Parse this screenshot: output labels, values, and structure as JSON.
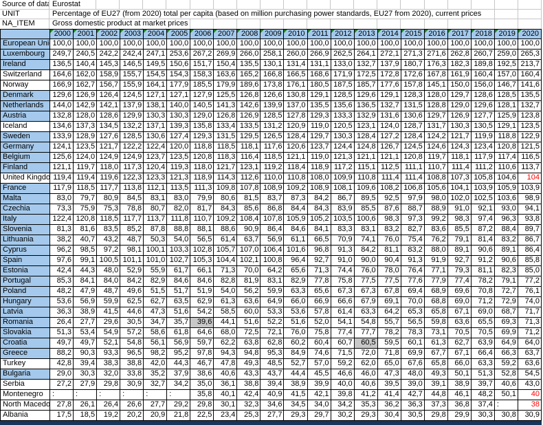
{
  "colors": {
    "header_blue": "#A4C9EC",
    "grid_gray": "#C6C6C6",
    "highlight_gray": "#C8C8C8",
    "red_text": "#FF0000",
    "note_marker_green": "#1E7E1E",
    "bottom_bar_navy": "#16365C"
  },
  "meta": [
    {
      "label": "Source of data",
      "value": "Eurostat"
    },
    {
      "label": "UNIT",
      "value": "Percentage of EU27 (from 2020) total per capita (based on million purchasing power standards, EU27 from 2020), current prices"
    },
    {
      "label": "NA_ITEM",
      "value": "Gross domestic product at market prices"
    }
  ],
  "years": [
    "2000",
    "2001",
    "2002",
    "2003",
    "2004",
    "2005",
    "2006",
    "2007",
    "2008",
    "2009",
    "2010",
    "2011",
    "2012",
    "2013",
    "2014",
    "2015",
    "2016",
    "2017",
    "2018",
    "2019",
    "2020"
  ],
  "rows": [
    {
      "country": "European Union",
      "eu_member": true,
      "values": [
        "100,0",
        "100,0",
        "100,0",
        "100,0",
        "100,0",
        "100,0",
        "100,0",
        "100,0",
        "100,0",
        "100,0",
        "100,0",
        "100,0",
        "100,0",
        "100,0",
        "100,0",
        "100,0",
        "100,0",
        "100,0",
        "100,0",
        "100,0",
        "100,0"
      ]
    },
    {
      "country": "Luxembourg",
      "eu_member": true,
      "values": [
        "249,7",
        "240,5",
        "242,2",
        "242,4",
        "247,1",
        "253,6",
        "267,2",
        "269,9",
        "266,0",
        "258,1",
        "260,0",
        "266,9",
        "262,5",
        "264,1",
        "272,1",
        "271,3",
        "271,6",
        "262,8",
        "260,7",
        "259,0",
        "265,3"
      ]
    },
    {
      "country": "Ireland",
      "eu_member": true,
      "values": [
        "136,5",
        "140,4",
        "145,3",
        "146,5",
        "149,5",
        "150,6",
        "151,7",
        "150,4",
        "135,5",
        "130,1",
        "131,4",
        "131,1",
        "133,0",
        "132,7",
        "137,9",
        "180,7",
        "176,3",
        "182,3",
        "189,8",
        "192,5",
        "213,7"
      ]
    },
    {
      "country": "Switzerland",
      "eu_member": false,
      "values": [
        "164,6",
        "162,0",
        "158,9",
        "155,7",
        "154,5",
        "154,3",
        "158,3",
        "163,6",
        "165,2",
        "166,8",
        "166,5",
        "168,6",
        "171,9",
        "172,5",
        "172,8",
        "172,6",
        "167,8",
        "161,9",
        "160,4",
        "157,0",
        "160,4"
      ]
    },
    {
      "country": "Norway",
      "eu_member": false,
      "values": [
        "166,9",
        "162,7",
        "156,7",
        "155,9",
        "164,1",
        "177,9",
        "185,5",
        "179,9",
        "189,6",
        "173,8",
        "176,1",
        "180,5",
        "187,5",
        "185,7",
        "177,6",
        "157,8",
        "145,1",
        "150,0",
        "156,0",
        "146,7",
        "141,6"
      ]
    },
    {
      "country": "Denmark",
      "eu_member": true,
      "values": [
        "129,6",
        "126,9",
        "126,4",
        "124,5",
        "127,1",
        "127,1",
        "127,9",
        "125,5",
        "126,8",
        "126,6",
        "130,8",
        "129,1",
        "128,5",
        "129,6",
        "129,1",
        "128,3",
        "128,0",
        "129,7",
        "128,6",
        "128,5",
        "135,5"
      ]
    },
    {
      "country": "Netherlands",
      "eu_member": true,
      "values": [
        "144,0",
        "142,9",
        "142,1",
        "137,9",
        "138,1",
        "140,0",
        "140,5",
        "141,3",
        "142,6",
        "139,9",
        "137,0",
        "135,5",
        "135,6",
        "136,5",
        "132,7",
        "131,5",
        "128,8",
        "129,0",
        "129,6",
        "128,1",
        "132,7"
      ]
    },
    {
      "country": "Austria",
      "eu_member": true,
      "values": [
        "132,8",
        "128,0",
        "128,6",
        "129,9",
        "130,3",
        "130,3",
        "129,0",
        "126,8",
        "126,9",
        "128,5",
        "127,8",
        "129,3",
        "133,3",
        "132,9",
        "131,6",
        "130,6",
        "129,7",
        "126,9",
        "127,7",
        "125,9",
        "123,8"
      ]
    },
    {
      "country": "Iceland",
      "eu_member": false,
      "values": [
        "134,6",
        "137,3",
        "134,5",
        "132,2",
        "137,1",
        "139,3",
        "135,8",
        "133,4",
        "133,5",
        "131,2",
        "120,9",
        "119,0",
        "120,5",
        "123,1",
        "124,0",
        "128,7",
        "131,7",
        "130,3",
        "130,5",
        "129,1",
        "123,5"
      ]
    },
    {
      "country": "Sweden",
      "eu_member": true,
      "values": [
        "133,9",
        "128,9",
        "127,6",
        "128,5",
        "130,6",
        "127,4",
        "129,3",
        "131,5",
        "129,5",
        "126,5",
        "128,4",
        "129,7",
        "130,3",
        "128,4",
        "127,2",
        "128,4",
        "124,2",
        "121,7",
        "119,9",
        "118,8",
        "122,9"
      ]
    },
    {
      "country": "Germany",
      "eu_member": true,
      "values": [
        "124,1",
        "123,5",
        "121,7",
        "122,2",
        "122,4",
        "120,0",
        "118,8",
        "118,5",
        "118,1",
        "117,6",
        "120,6",
        "123,7",
        "124,4",
        "124,8",
        "126,7",
        "124,5",
        "124,6",
        "124,3",
        "123,4",
        "120,8",
        "121,5"
      ]
    },
    {
      "country": "Belgium",
      "eu_member": true,
      "values": [
        "125,6",
        "124,0",
        "124,9",
        "124,9",
        "123,7",
        "123,5",
        "120,8",
        "118,3",
        "116,4",
        "118,5",
        "121,1",
        "119,0",
        "121,3",
        "121,1",
        "121,1",
        "120,8",
        "119,7",
        "118,1",
        "117,9",
        "117,4",
        "116,5"
      ]
    },
    {
      "country": "Finland",
      "eu_member": true,
      "values": [
        "121,1",
        "119,7",
        "118,0",
        "117,3",
        "120,4",
        "119,3",
        "118,0",
        "121,7",
        "123,1",
        "119,2",
        "118,4",
        "118,9",
        "117,2",
        "115,1",
        "112,5",
        "111,1",
        "110,7",
        "111,4",
        "111,2",
        "110,6",
        "113,7"
      ]
    },
    {
      "country": "United Kingdom",
      "eu_member": false,
      "values": [
        "119,4",
        "119,4",
        "119,6",
        "122,3",
        "123,3",
        "121,3",
        "118,9",
        "114,3",
        "112,6",
        "110,0",
        "110,8",
        "108,0",
        "109,9",
        "110,8",
        "111,4",
        "111,4",
        "108,8",
        "107,3",
        "105,8",
        "104,6",
        "104"
      ],
      "cell_styles": {
        "20": "red"
      }
    },
    {
      "country": "France",
      "eu_member": true,
      "values": [
        "117,9",
        "118,5",
        "117,7",
        "113,8",
        "112,1",
        "113,5",
        "111,3",
        "109,8",
        "107,8",
        "108,9",
        "109,2",
        "108,9",
        "108,1",
        "109,6",
        "108,2",
        "106,8",
        "105,6",
        "104,1",
        "103,9",
        "105,9",
        "103,9"
      ]
    },
    {
      "country": "Malta",
      "eu_member": true,
      "values": [
        "83,0",
        "79,7",
        "80,9",
        "84,5",
        "83,1",
        "83,0",
        "79,9",
        "80,6",
        "81,5",
        "83,7",
        "87,3",
        "84,2",
        "86,7",
        "89,5",
        "92,5",
        "97,9",
        "98,0",
        "102,0",
        "102,5",
        "103,6",
        "98,9"
      ]
    },
    {
      "country": "Czechia",
      "eu_member": true,
      "values": [
        "73,3",
        "75,9",
        "75,3",
        "78,8",
        "80,7",
        "82,0",
        "81,7",
        "84,3",
        "85,6",
        "86,8",
        "84,4",
        "84,3",
        "83,9",
        "85,5",
        "87,6",
        "88,7",
        "88,9",
        "91,0",
        "92,1",
        "93,0",
        "94,1"
      ]
    },
    {
      "country": "Italy",
      "eu_member": true,
      "values": [
        "122,4",
        "120,8",
        "118,5",
        "117,7",
        "113,7",
        "111,8",
        "110,7",
        "109,2",
        "108,4",
        "107,8",
        "105,9",
        "105,2",
        "103,5",
        "100,6",
        "98,3",
        "97,3",
        "99,2",
        "98,3",
        "97,4",
        "96,3",
        "93,8"
      ]
    },
    {
      "country": "Slovenia",
      "eu_member": true,
      "values": [
        "81,3",
        "81,6",
        "83,5",
        "85,2",
        "87,8",
        "88,8",
        "88,1",
        "88,6",
        "90,9",
        "86,4",
        "84,6",
        "84,1",
        "83,3",
        "83,1",
        "83,2",
        "82,7",
        "83,6",
        "85,5",
        "87,2",
        "88,4",
        "89,7"
      ]
    },
    {
      "country": "Lithuania",
      "eu_member": true,
      "values": [
        "38,2",
        "40,7",
        "43,2",
        "48,7",
        "50,3",
        "54,0",
        "56,5",
        "61,4",
        "63,7",
        "56,9",
        "61,1",
        "66,5",
        "70,9",
        "74,1",
        "76,0",
        "75,4",
        "76,2",
        "79,1",
        "81,4",
        "83,2",
        "86,7"
      ]
    },
    {
      "country": "Cyprus",
      "eu_member": true,
      "values": [
        "96,2",
        "98,5",
        "97,2",
        "98,1",
        "100,1",
        "103,3",
        "102,8",
        "105,7",
        "107,0",
        "106,4",
        "101,6",
        "96,8",
        "91,3",
        "84,2",
        "81,1",
        "83,2",
        "88,0",
        "89,1",
        "90,6",
        "89,1",
        "86,4"
      ]
    },
    {
      "country": "Spain",
      "eu_member": true,
      "values": [
        "97,6",
        "99,1",
        "100,5",
        "101,1",
        "101,0",
        "102,7",
        "105,3",
        "104,4",
        "102,1",
        "100,8",
        "96,4",
        "92,7",
        "91,0",
        "90,0",
        "90,4",
        "91,3",
        "91,9",
        "92,7",
        "91,2",
        "90,6",
        "85,8"
      ]
    },
    {
      "country": "Estonia",
      "eu_member": true,
      "values": [
        "42,4",
        "44,3",
        "48,0",
        "52,9",
        "55,9",
        "61,7",
        "66,1",
        "71,3",
        "70,0",
        "64,2",
        "65,6",
        "71,3",
        "74,4",
        "76,0",
        "78,0",
        "76,4",
        "77,1",
        "79,3",
        "81,1",
        "82,3",
        "85,0"
      ]
    },
    {
      "country": "Portugal",
      "eu_member": true,
      "values": [
        "85,3",
        "84,1",
        "84,0",
        "84,2",
        "82,9",
        "84,6",
        "84,6",
        "82,8",
        "81,9",
        "83,1",
        "82,9",
        "77,8",
        "75,8",
        "77,5",
        "77,5",
        "77,6",
        "77,9",
        "77,4",
        "78,2",
        "79,1",
        "77,2"
      ]
    },
    {
      "country": "Poland",
      "eu_member": true,
      "values": [
        "48,2",
        "47,9",
        "48,7",
        "49,6",
        "51,5",
        "51,7",
        "51,9",
        "54,0",
        "56,2",
        "59,9",
        "63,3",
        "65,6",
        "67,3",
        "67,3",
        "67,8",
        "69,4",
        "68,9",
        "69,6",
        "70,8",
        "72,7",
        "76,1"
      ]
    },
    {
      "country": "Hungary",
      "eu_member": true,
      "values": [
        "53,6",
        "56,9",
        "59,9",
        "62,5",
        "62,7",
        "63,5",
        "62,9",
        "61,3",
        "63,6",
        "64,9",
        "66,0",
        "66,9",
        "66,6",
        "67,9",
        "69,1",
        "70,0",
        "68,8",
        "69,0",
        "71,2",
        "72,9",
        "74,0"
      ]
    },
    {
      "country": "Latvia",
      "eu_member": true,
      "values": [
        "36,3",
        "38,9",
        "41,5",
        "44,6",
        "47,3",
        "51,6",
        "54,2",
        "58,5",
        "60,0",
        "53,3",
        "53,6",
        "57,8",
        "61,4",
        "63,3",
        "64,2",
        "65,3",
        "65,8",
        "67,1",
        "69,0",
        "68,7",
        "71,7"
      ]
    },
    {
      "country": "Romania",
      "eu_member": true,
      "values": [
        "26,4",
        "27,7",
        "29,6",
        "30,5",
        "34,7",
        "35,7",
        "39,6",
        "44,1",
        "51,6",
        "52,2",
        "51,6",
        "52,0",
        "54,1",
        "54,8",
        "55,7",
        "56,5",
        "59,8",
        "63,6",
        "65,5",
        "69,3",
        "71,3"
      ],
      "cell_styles": {
        "6": "gray"
      }
    },
    {
      "country": "Slovakia",
      "eu_member": true,
      "values": [
        "51,3",
        "53,4",
        "54,9",
        "57,2",
        "58,6",
        "61,8",
        "64,6",
        "68,0",
        "72,5",
        "72,1",
        "76,0",
        "75,8",
        "77,4",
        "77,7",
        "78,2",
        "78,3",
        "73,1",
        "70,5",
        "70,5",
        "69,9",
        "71,2"
      ]
    },
    {
      "country": "Croatia",
      "eu_member": true,
      "values": [
        "49,7",
        "49,7",
        "52,1",
        "54,8",
        "56,1",
        "56,9",
        "59,7",
        "62,2",
        "63,8",
        "62,8",
        "60,2",
        "60,4",
        "60,7",
        "60,5",
        "59,5",
        "60,1",
        "61,3",
        "62,7",
        "63,9",
        "64,9",
        "64,0"
      ],
      "cell_styles": {
        "13": "gray"
      }
    },
    {
      "country": "Greece",
      "eu_member": true,
      "values": [
        "88,2",
        "90,3",
        "93,3",
        "96,5",
        "98,2",
        "95,2",
        "97,8",
        "94,3",
        "94,8",
        "95,3",
        "84,9",
        "74,6",
        "71,5",
        "72,0",
        "71,8",
        "69,9",
        "67,7",
        "67,1",
        "66,4",
        "66,3",
        "63,7"
      ]
    },
    {
      "country": "Turkey",
      "eu_member": false,
      "values": [
        "42,8",
        "39,4",
        "38,3",
        "38,8",
        "42,0",
        "44,3",
        "46,7",
        "47,8",
        "49,3",
        "48,5",
        "52,7",
        "57,0",
        "59,2",
        "62,0",
        "65,0",
        "67,6",
        "65,8",
        "66,0",
        "63,3",
        "59,2",
        "63,6"
      ]
    },
    {
      "country": "Bulgaria",
      "eu_member": true,
      "values": [
        "29,0",
        "30,3",
        "32,0",
        "33,8",
        "35,2",
        "37,9",
        "38,6",
        "40,6",
        "43,3",
        "43,7",
        "44,4",
        "45,5",
        "46,6",
        "46,0",
        "47,3",
        "48,0",
        "49,3",
        "50,1",
        "51,3",
        "52,8",
        "54,5"
      ]
    },
    {
      "country": "Serbia",
      "eu_member": false,
      "values": [
        "27,2",
        "27,9",
        "29,8",
        "30,9",
        "32,7",
        "34,2",
        "35,0",
        "36,1",
        "38,8",
        "39,4",
        "38,9",
        "39,9",
        "40,0",
        "40,6",
        "39,5",
        "39,0",
        "39,1",
        "38,9",
        "39,7",
        "40,6",
        "43,0"
      ]
    },
    {
      "country": "Montenegro",
      "eu_member": false,
      "values": [
        ":",
        ":",
        ":",
        ":",
        ":",
        ":",
        "35,8",
        "40,1",
        "42,4",
        "40,9",
        "41,5",
        "42,1",
        "39,8",
        "41,2",
        "41,4",
        "42,7",
        "44,8",
        "46,1",
        "48,2",
        "50,1",
        "40"
      ],
      "cell_styles": {
        "20": "red"
      }
    },
    {
      "country": "North Macedonia",
      "eu_member": false,
      "values": [
        "27,8",
        "26,1",
        "26,4",
        "26,6",
        "27,7",
        "29,2",
        "29,8",
        "30,1",
        "32,3",
        "34,6",
        "34,5",
        "34,0",
        "34,2",
        "35,3",
        "36,2",
        "36,3",
        "37,3",
        "36,8",
        "37,4",
        ":",
        "38"
      ],
      "cell_styles": {
        "20": "red"
      }
    },
    {
      "country": "Albania",
      "eu_member": false,
      "values": [
        "17,5",
        "18,5",
        "19,2",
        "20,2",
        "20,9",
        "21,8",
        "22,5",
        "23,4",
        "25,3",
        "27,7",
        "29,3",
        "29,7",
        "30,2",
        "29,3",
        "30,4",
        "30,5",
        "29,8",
        "29,9",
        "30,3",
        "30,8",
        "30,9"
      ]
    }
  ]
}
